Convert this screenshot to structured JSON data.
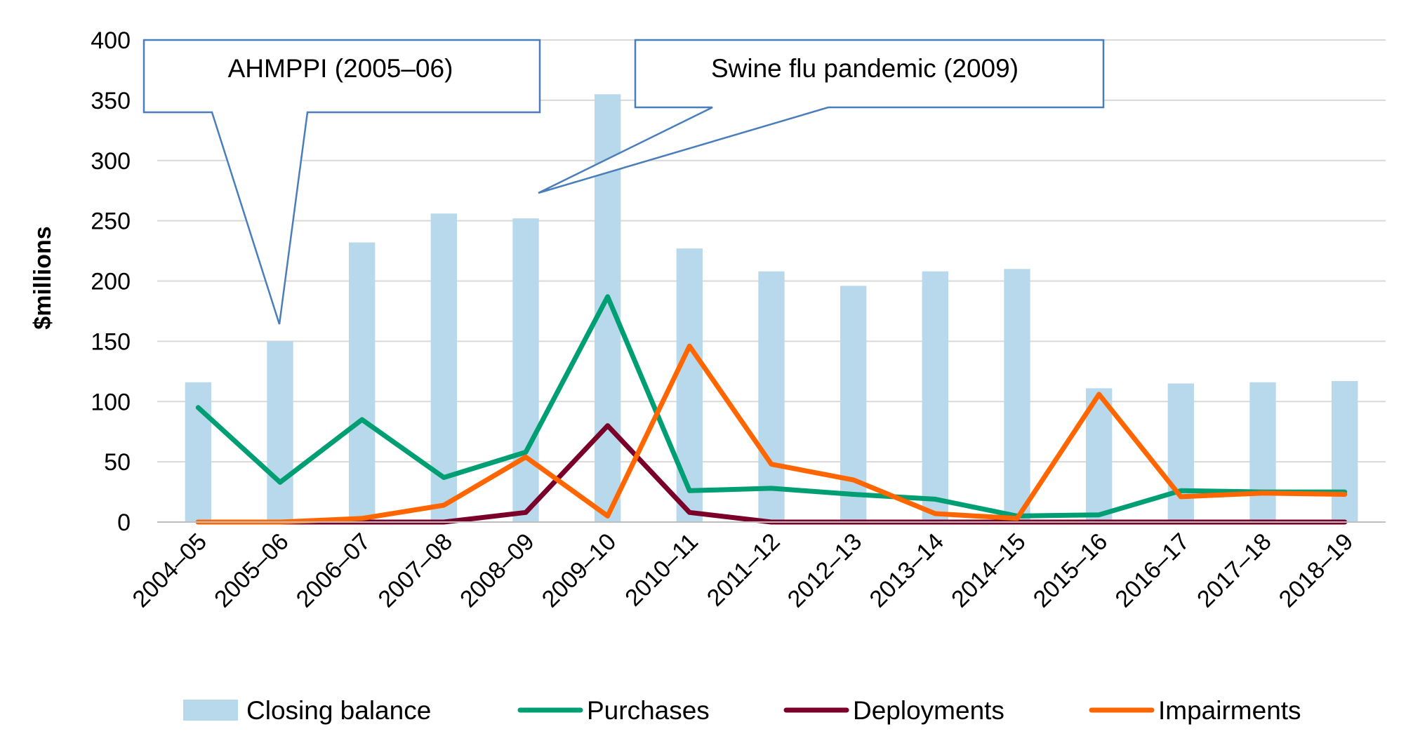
{
  "chart_data": {
    "type": "bar",
    "title": "",
    "xlabel": "",
    "ylabel": "$millions",
    "ylim": [
      0,
      400
    ],
    "yticks": [
      0,
      50,
      100,
      150,
      200,
      250,
      300,
      350,
      400
    ],
    "grid": true,
    "legend_position": "bottom",
    "categories": [
      "2004–05",
      "2005–06",
      "2006–07",
      "2007–08",
      "2008–09",
      "2009–10",
      "2010–11",
      "2011–12",
      "2012–13",
      "2013–14",
      "2014–15",
      "2015–16",
      "2016–17",
      "2017–18",
      "2018–19"
    ],
    "series": [
      {
        "name": "Closing balance",
        "kind": "bar",
        "color": "#b8d9ec",
        "values": [
          116,
          150,
          232,
          256,
          252,
          355,
          227,
          208,
          196,
          208,
          210,
          111,
          115,
          116,
          117
        ]
      },
      {
        "name": "Purchases",
        "kind": "line",
        "color": "#009e73",
        "values": [
          95,
          33,
          85,
          37,
          58,
          187,
          26,
          28,
          23,
          19,
          5,
          6,
          26,
          25,
          25
        ]
      },
      {
        "name": "Deployments",
        "kind": "line",
        "color": "#7b0029",
        "values": [
          0,
          0,
          0,
          0,
          8,
          80,
          8,
          0,
          0,
          0,
          0,
          0,
          0,
          0,
          0
        ]
      },
      {
        "name": "Impairments",
        "kind": "line",
        "color": "#ff6600",
        "values": [
          0,
          0,
          3,
          14,
          54,
          5,
          146,
          48,
          35,
          7,
          3,
          106,
          21,
          24,
          23
        ]
      }
    ],
    "annotations": [
      {
        "text": "AHMPPI (2005–06)",
        "points_to": "2005–06"
      },
      {
        "text": "Swine flu pandemic (2009)",
        "points_to": "2008–09"
      }
    ]
  },
  "colors": {
    "grid": "#d9d9d9",
    "axis": "#bfbfbf",
    "callout_border": "#4a7ebb"
  }
}
